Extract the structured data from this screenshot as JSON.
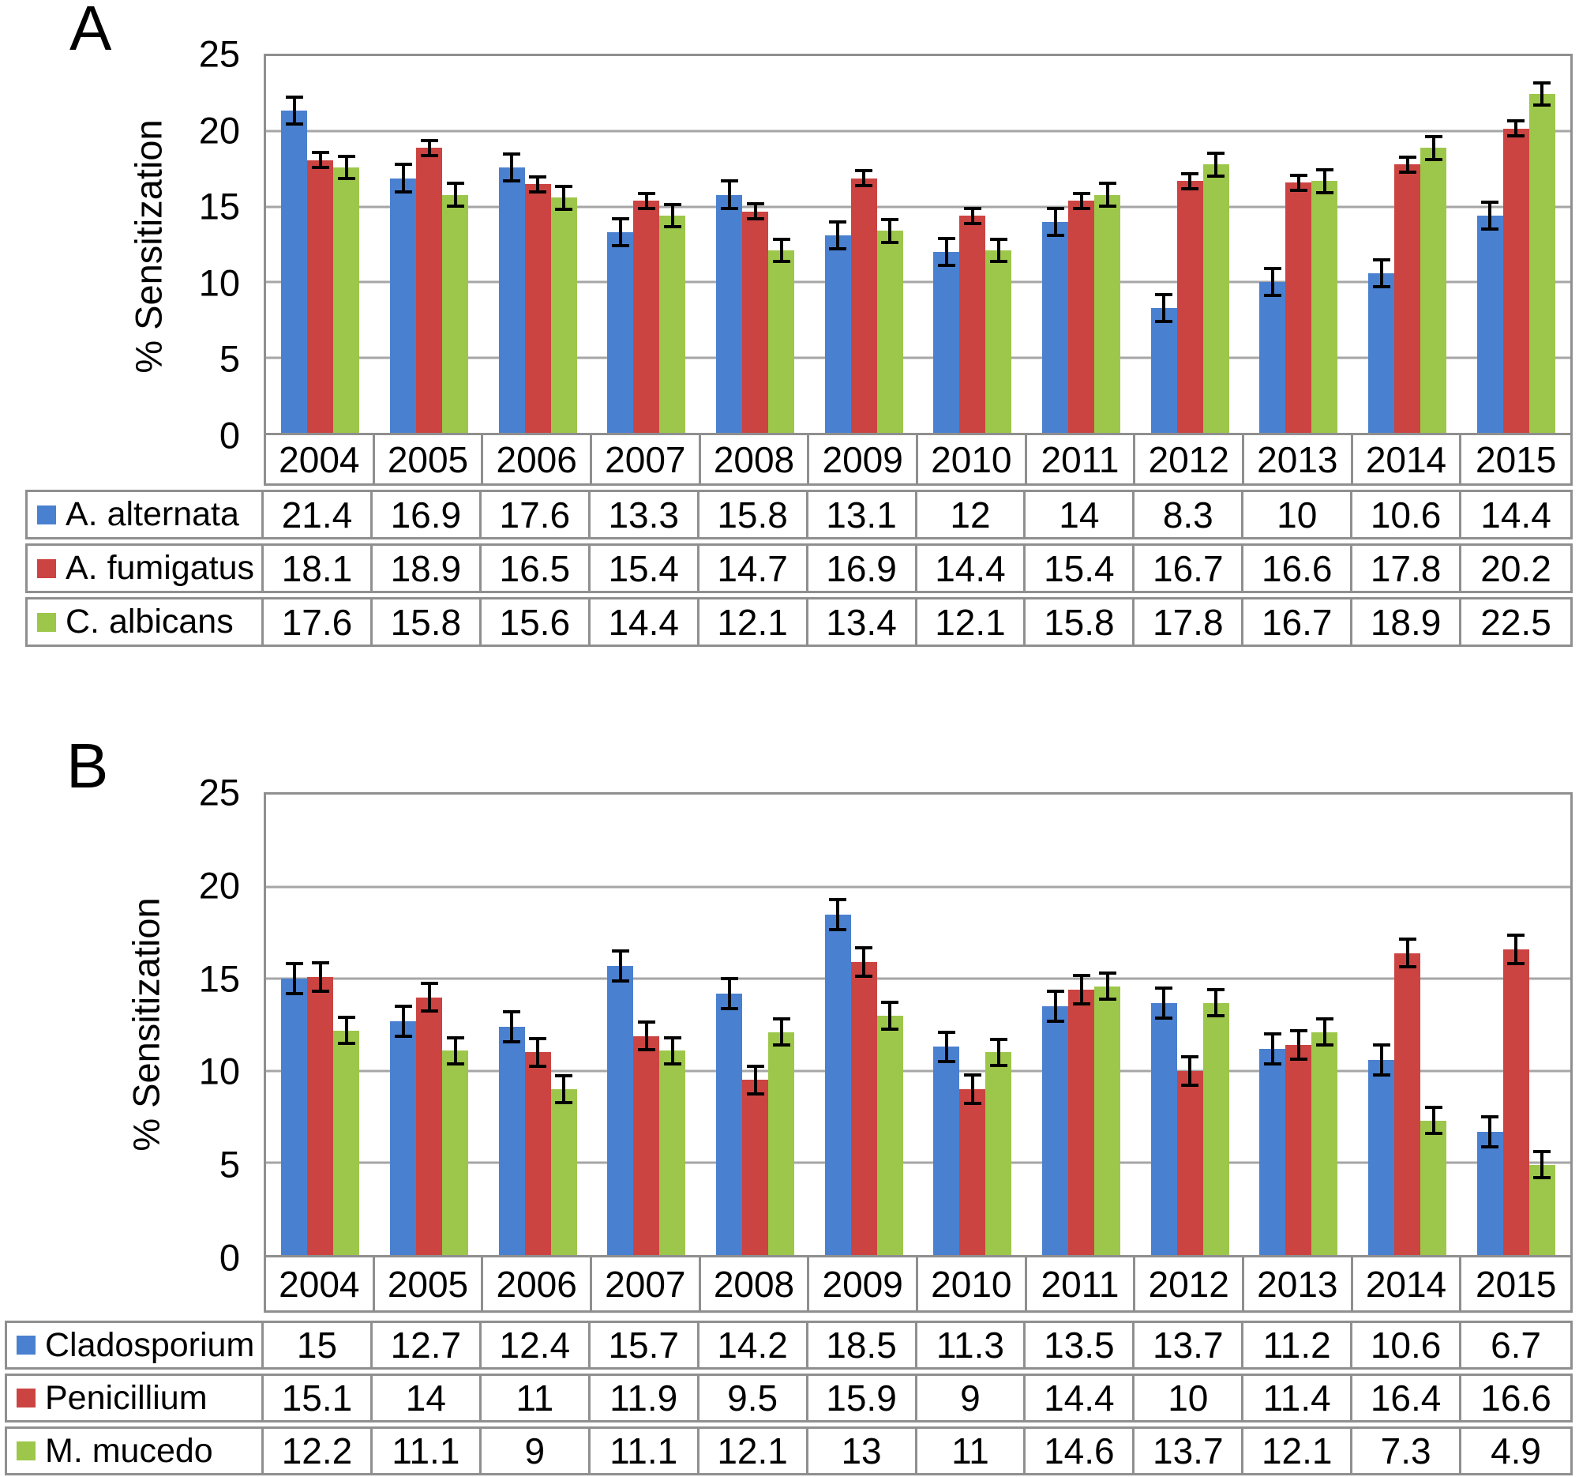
{
  "colors": {
    "series_blue": "#4a80d0",
    "series_red": "#cb4441",
    "series_green": "#9dc74a",
    "grid_line": "#a6a6a6",
    "axis_and_table_border": "#8f8f8f",
    "text": "#000000"
  },
  "chart_data": [
    {
      "panel_label": "A",
      "type": "bar",
      "title": "",
      "xlabel": "",
      "ylabel": "% Sensitization",
      "ylim": [
        0,
        25
      ],
      "yticks": [
        0,
        5,
        10,
        15,
        20,
        25
      ],
      "grid": true,
      "legend_position": "table-left",
      "error_bars": true,
      "categories": [
        "2004",
        "2005",
        "2006",
        "2007",
        "2008",
        "2009",
        "2010",
        "2011",
        "2012",
        "2013",
        "2014",
        "2015"
      ],
      "series": [
        {
          "name": "A. alternata",
          "color": "#4a80d0",
          "values": [
            21.4,
            16.9,
            17.6,
            13.3,
            15.8,
            13.1,
            12,
            14,
            8.3,
            10,
            10.6,
            14.4
          ],
          "error_estimate": 1.0
        },
        {
          "name": "A. fumigatus",
          "color": "#cb4441",
          "values": [
            18.1,
            18.9,
            16.5,
            15.4,
            14.7,
            16.9,
            14.4,
            15.4,
            16.7,
            16.6,
            17.8,
            20.2
          ],
          "error_estimate": 0.6
        },
        {
          "name": "C. albicans",
          "color": "#9dc74a",
          "values": [
            17.6,
            15.8,
            15.6,
            14.4,
            12.1,
            13.4,
            12.1,
            15.8,
            17.8,
            16.7,
            18.9,
            22.5
          ],
          "error_estimate": 0.85
        }
      ]
    },
    {
      "panel_label": "B",
      "type": "bar",
      "title": "",
      "xlabel": "",
      "ylabel": "% Sensitization",
      "ylim": [
        0,
        25
      ],
      "yticks": [
        0,
        5,
        10,
        15,
        20,
        25
      ],
      "grid": true,
      "legend_position": "table-left",
      "error_bars": true,
      "categories": [
        "2004",
        "2005",
        "2006",
        "2007",
        "2008",
        "2009",
        "2010",
        "2011",
        "2012",
        "2013",
        "2014",
        "2015"
      ],
      "series": [
        {
          "name": "Cladosporium",
          "color": "#4a80d0",
          "values": [
            15,
            12.7,
            12.4,
            15.7,
            14.2,
            18.5,
            11.3,
            13.5,
            13.7,
            11.2,
            10.6,
            6.7
          ],
          "error_estimate": 0.9
        },
        {
          "name": "Penicillium",
          "color": "#cb4441",
          "values": [
            15.1,
            14,
            11,
            11.9,
            9.5,
            15.9,
            9,
            14.4,
            10,
            11.4,
            16.4,
            16.6
          ],
          "error_estimate": 0.85
        },
        {
          "name": "M. mucedo",
          "color": "#9dc74a",
          "values": [
            12.2,
            11.1,
            9,
            11.1,
            12.1,
            13,
            11,
            14.6,
            13.7,
            12.1,
            7.3,
            4.9
          ],
          "error_estimate": 0.8
        }
      ]
    }
  ]
}
